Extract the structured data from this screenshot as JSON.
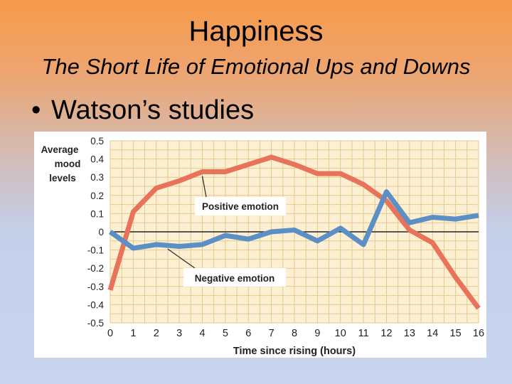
{
  "slide": {
    "title": "Happiness",
    "subtitle": "The Short Life of Emotional Ups and Downs",
    "bullet_symbol": "•",
    "bullet_text": "Watson’s studies"
  },
  "chart_data": {
    "type": "line",
    "title": "",
    "ylabel_lines": [
      "Average",
      "mood",
      "levels"
    ],
    "xlabel": "Time since rising (hours)",
    "x": [
      0,
      1,
      2,
      3,
      4,
      5,
      6,
      7,
      8,
      9,
      10,
      11,
      12,
      13,
      14,
      15,
      16
    ],
    "xticks": [
      "0",
      "1",
      "2",
      "3",
      "4",
      "5",
      "6",
      "7",
      "8",
      "9",
      "10",
      "11",
      "12",
      "13",
      "14",
      "15",
      "16"
    ],
    "yticks": [
      "0.5",
      "0.4",
      "0.3",
      "0.2",
      "0.1",
      "0",
      "-0.1",
      "-0.2",
      "-0.3",
      "-0.4",
      "-0.5"
    ],
    "ylim": [
      -0.5,
      0.5
    ],
    "xlim": [
      0,
      16
    ],
    "grid": true,
    "series": [
      {
        "name": "Positive emotion",
        "color": "#e8735a",
        "values": [
          -0.32,
          0.11,
          0.24,
          0.28,
          0.33,
          0.33,
          0.37,
          0.41,
          0.37,
          0.32,
          0.32,
          0.26,
          0.17,
          0.01,
          -0.06,
          -0.25,
          -0.42
        ]
      },
      {
        "name": "Negative emotion",
        "color": "#5b8fc6",
        "values": [
          0.0,
          -0.09,
          -0.07,
          -0.08,
          -0.07,
          -0.02,
          -0.04,
          0.0,
          0.01,
          -0.05,
          0.02,
          -0.07,
          0.22,
          0.05,
          0.08,
          0.07,
          0.09
        ]
      }
    ],
    "annotations": [
      {
        "label": "Positive emotion",
        "series": 0,
        "at_x": 4
      },
      {
        "label": "Negative emotion",
        "series": 1,
        "at_x": 2.5
      }
    ],
    "colors": {
      "plot_bg": "#fdf0d2",
      "grid": "#e2c98f",
      "zero_line": "#222222",
      "axis_text": "#222222"
    }
  }
}
